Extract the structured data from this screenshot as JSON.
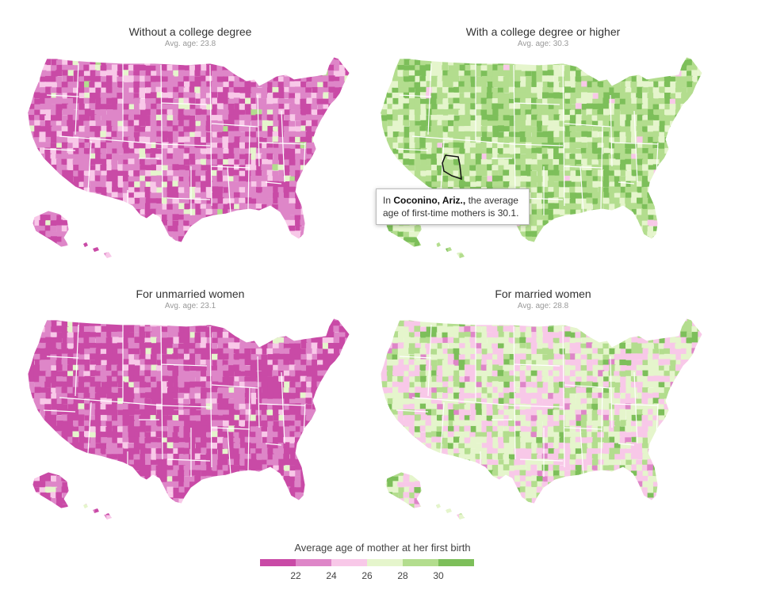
{
  "panels": [
    {
      "title": "Without a college degree",
      "avg_label": "Avg. age: 23.8",
      "avg_age": 23.8
    },
    {
      "title": "With a college degree or higher",
      "avg_label": "Avg. age: 30.3",
      "avg_age": 30.3
    },
    {
      "title": "For unmarried women",
      "avg_label": "Avg. age: 23.1",
      "avg_age": 23.1
    },
    {
      "title": "For married women",
      "avg_label": "Avg. age: 28.8",
      "avg_age": 28.8
    }
  ],
  "tooltip": {
    "prefix": "In ",
    "county": "Coconino, Ariz.,",
    "suffix": " the average age of first-time mothers is 30.1.",
    "value": 30.1
  },
  "legend": {
    "title": "Average age of mother at her first birth",
    "ticks": [
      "22",
      "24",
      "26",
      "28",
      "30"
    ],
    "colors": [
      "#c94aa6",
      "#de86c8",
      "#f8c8e8",
      "#e5f5cc",
      "#b3dd8e",
      "#7dbf5a"
    ]
  }
}
